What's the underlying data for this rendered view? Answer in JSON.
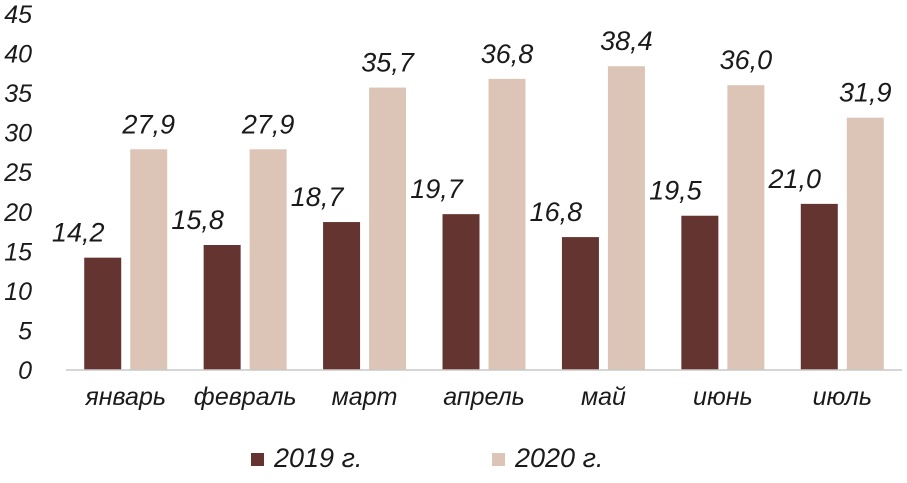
{
  "chart_data": {
    "type": "bar",
    "categories": [
      "январь",
      "февраль",
      "март",
      "апрель",
      "май",
      "июнь",
      "июль"
    ],
    "series": [
      {
        "name": "2019 г.",
        "values": [
          14.2,
          15.8,
          18.7,
          19.7,
          16.8,
          19.5,
          21.0
        ],
        "labels": [
          "14,2",
          "15,8",
          "18,7",
          "19,7",
          "16,8",
          "19,5",
          "21,0"
        ],
        "color": "#643430"
      },
      {
        "name": "2020 г.",
        "values": [
          27.9,
          27.9,
          35.7,
          36.8,
          38.4,
          36.0,
          31.9
        ],
        "labels": [
          "27,9",
          "27,9",
          "35,7",
          "36,8",
          "38,4",
          "36,0",
          "31,9"
        ],
        "color": "#dcc5b6"
      }
    ],
    "ylim": [
      0,
      45
    ],
    "yticks": [
      0,
      5,
      10,
      15,
      20,
      25,
      30,
      35,
      40,
      45
    ],
    "grid": false,
    "legend_position": "bottom",
    "axis_color": "#c8c8c8"
  }
}
